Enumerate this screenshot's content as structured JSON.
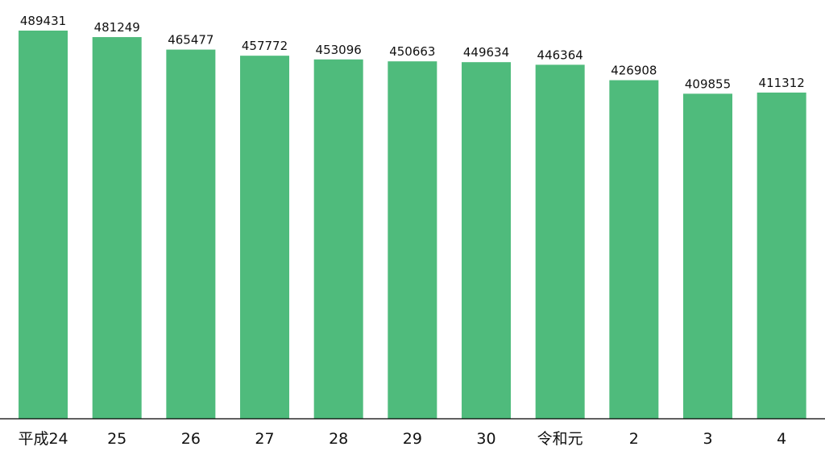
{
  "chart_data": {
    "type": "bar",
    "categories": [
      "平成24",
      "25",
      "26",
      "27",
      "28",
      "29",
      "30",
      "令和元",
      "2",
      "3",
      "4"
    ],
    "values": [
      489431,
      481249,
      465477,
      457772,
      453096,
      450663,
      449634,
      446364,
      426908,
      409855,
      411312
    ],
    "color": "#4fbb7c"
  }
}
